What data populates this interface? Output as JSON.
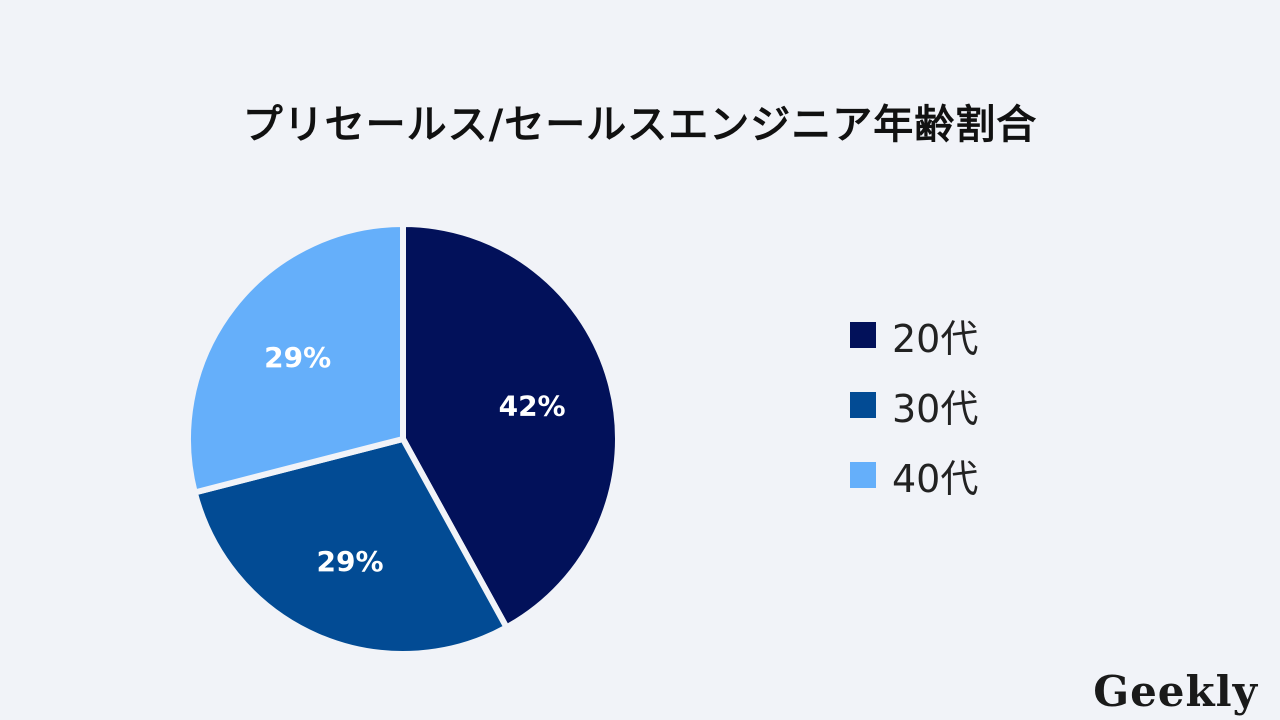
{
  "chart_data": {
    "type": "pie",
    "title": "プリセールス/セールスエンジニア年齢割合",
    "categories": [
      "20代",
      "30代",
      "40代"
    ],
    "values": [
      42,
      29,
      29
    ],
    "data_labels": [
      "42%",
      "29%",
      "29%"
    ],
    "colors": [
      "#02115a",
      "#024b94",
      "#65affa"
    ],
    "legend_position": "right"
  },
  "brand": {
    "logo_text": "Geekly"
  }
}
